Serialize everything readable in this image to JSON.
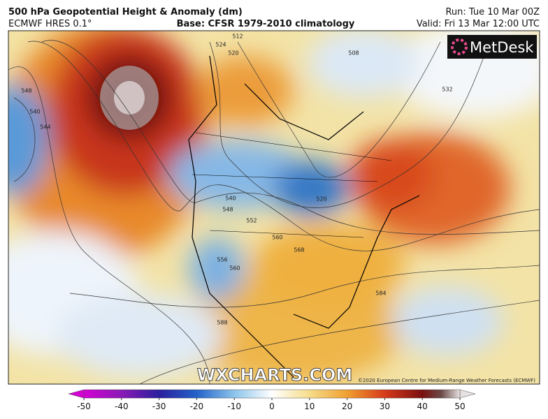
{
  "header": {
    "title": "500 hPa Geopotential Height & Anomaly (dm)",
    "model": "ECMWF HRES 0.1°",
    "base": "Base: CFSR 1979-2010 climatology",
    "run": "Run: Tue 10 Mar 00Z",
    "valid": "Valid: Fri 13 Mar 12:00 UTC"
  },
  "logo": "MetDesk",
  "watermark": "WXCHARTS.COM",
  "copyright": "©2020 European Centre for Medium-Range Weather Forecasts (ECMWF)",
  "contour_labels": [
    "548",
    "540",
    "544",
    "524",
    "520",
    "512",
    "508",
    "532",
    "540",
    "548",
    "552",
    "560",
    "568",
    "556",
    "560",
    "584",
    "588",
    "520"
  ],
  "colorbar": {
    "range": [
      -50,
      50
    ],
    "ticks": [
      -50,
      -40,
      -30,
      -20,
      -10,
      0,
      10,
      20,
      30,
      40,
      50
    ]
  }
}
